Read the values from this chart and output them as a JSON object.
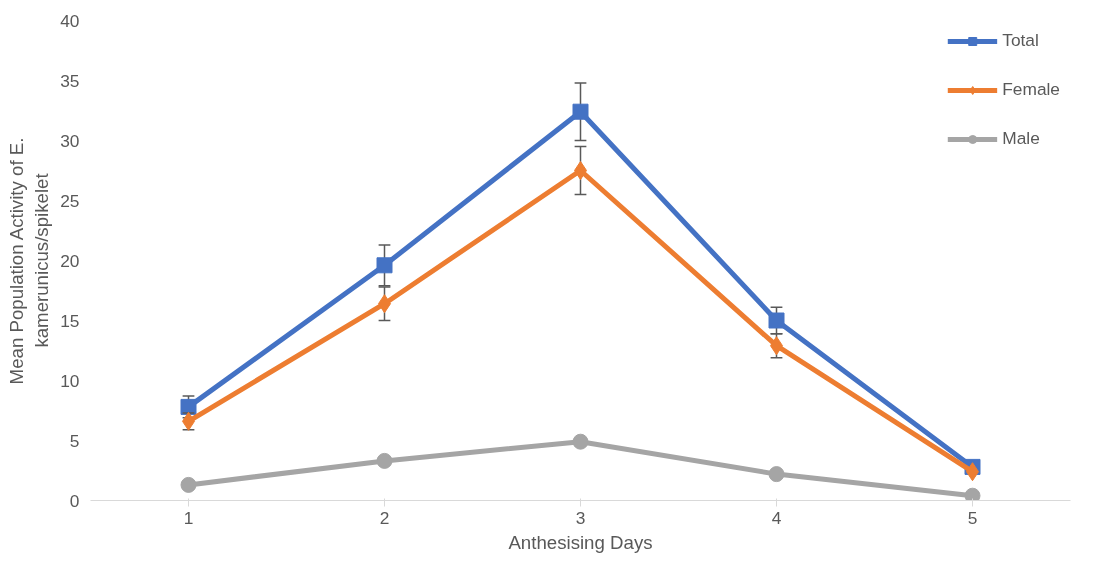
{
  "chart_data": {
    "type": "line",
    "xlabel": "Anthesising Days",
    "ylabel": "Mean Population Activity of E. kamerunicus/spikelet",
    "x": [
      1,
      2,
      3,
      4,
      5
    ],
    "xlim": [
      0.5,
      5.5
    ],
    "xticks": [
      1,
      2,
      3,
      4,
      5
    ],
    "ylim": [
      0,
      40
    ],
    "yticks": [
      0,
      5,
      10,
      15,
      20,
      25,
      30,
      35,
      40
    ],
    "grid": false,
    "legend": "top right",
    "line_style": "solid",
    "series": [
      {
        "name": "Total",
        "color": "#4472c4",
        "marker": "square",
        "values": [
          7.8,
          19.6,
          32.4,
          15.0,
          2.8
        ],
        "errors": [
          0.9,
          1.7,
          2.4,
          1.1,
          null
        ]
      },
      {
        "name": "Female",
        "color": "#ed7d31",
        "marker": "diamond",
        "values": [
          6.6,
          16.4,
          27.5,
          12.9,
          2.4
        ],
        "errors": [
          0.7,
          1.4,
          2.0,
          1.0,
          null
        ]
      },
      {
        "name": "Male",
        "color": "#a5a5a5",
        "marker": "circle",
        "values": [
          1.3,
          3.3,
          4.9,
          2.2,
          0.4
        ]
      }
    ]
  }
}
